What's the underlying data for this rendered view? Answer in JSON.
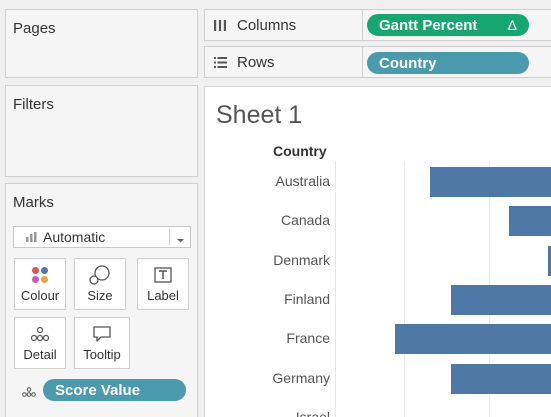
{
  "sidebar": {
    "pages_title": "Pages",
    "filters_title": "Filters",
    "marks_title": "Marks",
    "mark_type": "Automatic",
    "mark_buttons": [
      {
        "label": "Colour",
        "icon": "colour-icon"
      },
      {
        "label": "Size",
        "icon": "size-icon"
      },
      {
        "label": "Label",
        "icon": "label-icon"
      },
      {
        "label": "Detail",
        "icon": "detail-icon"
      },
      {
        "label": "Tooltip",
        "icon": "tooltip-icon"
      }
    ],
    "score_pill": "Score Value"
  },
  "shelves": {
    "columns_label": "Columns",
    "columns_pill": "Gantt Percent",
    "columns_delta": "Δ",
    "rows_label": "Rows",
    "rows_pill": "Country"
  },
  "sheet": {
    "title": "Sheet 1",
    "column_header": "Country"
  },
  "colors": {
    "bar": "#4e79a7",
    "green_pill": "#17a672",
    "blue_pill": "#4b9aae"
  },
  "chart_data": {
    "type": "gantt-bar",
    "categories": [
      "Australia",
      "Canada",
      "Denmark",
      "Finland",
      "France",
      "Germany",
      "Israel"
    ],
    "values": [
      1,
      1,
      1,
      1,
      1,
      1,
      null
    ]
  }
}
